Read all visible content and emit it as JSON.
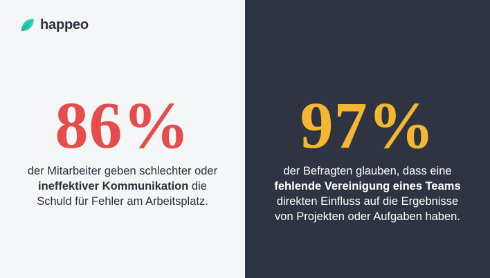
{
  "brand": {
    "name": "happeo"
  },
  "left": {
    "stat": "86%",
    "line1": "der Mitarbeiter geben schlechter oder",
    "bold": "ineffektiver Kommunikation",
    "line2_rest": " die",
    "line3": "Schuld für Fehler am Arbeitsplatz."
  },
  "right": {
    "stat": "97%",
    "line1": "der Befragten glauben, dass eine",
    "bold": "fehlende Vereinigung eines Teams",
    "line3": "direkten Einfluss auf die Ergebnisse",
    "line4": "von Projekten oder Aufgaben haben."
  },
  "colors": {
    "left_bg": "#f5f6f8",
    "right_bg": "#2e3441",
    "left_stat": "#e84b4b",
    "right_stat": "#f5b731",
    "brand_accent": "#2dd4a8"
  }
}
